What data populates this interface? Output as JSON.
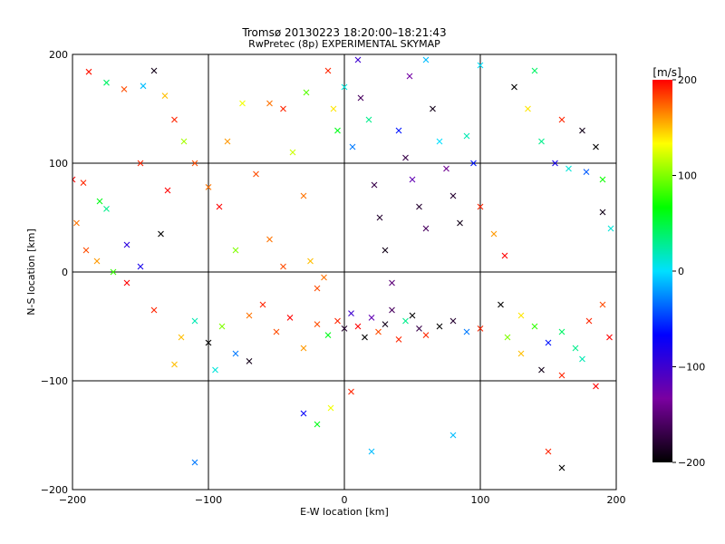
{
  "chart_data": {
    "type": "scatter",
    "title": "Tromsø 20130223 18:20:00–18:21:43",
    "subtitle": "RwPretec (8p) EXPERIMENTAL SKYMAP",
    "xlabel": "E-W location [km]",
    "ylabel": "N-S location [km]",
    "xlim": [
      -200,
      200
    ],
    "ylim": [
      -200,
      200
    ],
    "x_ticks": [
      -200,
      -100,
      0,
      100,
      200
    ],
    "y_ticks": [
      -200,
      -100,
      0,
      100,
      200
    ],
    "x_tick_labels": [
      "−200",
      "−100",
      "0",
      "100",
      "200"
    ],
    "y_tick_labels": [
      "−200",
      "−100",
      "0",
      "100",
      "200"
    ],
    "grid": true,
    "markers": [
      "cross-x",
      "dot"
    ],
    "colorbar": {
      "label": "[m/s]",
      "range": [
        -200,
        200
      ],
      "ticks": [
        -200,
        -100,
        0,
        100,
        200
      ],
      "tick_labels": [
        "−200",
        "−100",
        "0",
        "100",
        "200"
      ],
      "colormap": "rainbow-black-to-red",
      "colors": [
        "#000000",
        "#7a00a0",
        "#0000ff",
        "#00e0ff",
        "#00ff00",
        "#ffff00",
        "#ff0000"
      ]
    },
    "series": [
      {
        "marker": "cross-x",
        "points": [
          [
            -188,
            184,
            195
          ],
          [
            -175,
            174,
            40
          ],
          [
            -162,
            168,
            180
          ],
          [
            -148,
            171,
            -10
          ],
          [
            -140,
            185,
            -190
          ],
          [
            -132,
            162,
            150
          ],
          [
            -125,
            140,
            190
          ],
          [
            -118,
            120,
            110
          ],
          [
            -110,
            100,
            180
          ],
          [
            -100,
            78,
            170
          ],
          [
            -92,
            60,
            200
          ],
          [
            -86,
            120,
            160
          ],
          [
            -75,
            155,
            130
          ],
          [
            -65,
            90,
            180
          ],
          [
            -55,
            30,
            170
          ],
          [
            -45,
            150,
            190
          ],
          [
            -38,
            110,
            120
          ],
          [
            -30,
            70,
            170
          ],
          [
            -25,
            10,
            150
          ],
          [
            -20,
            -15,
            180
          ],
          [
            -12,
            185,
            190
          ],
          [
            -5,
            130,
            60
          ],
          [
            0,
            170,
            10
          ],
          [
            6,
            115,
            -30
          ],
          [
            12,
            160,
            -160
          ],
          [
            18,
            140,
            30
          ],
          [
            22,
            80,
            -170
          ],
          [
            26,
            50,
            -180
          ],
          [
            30,
            20,
            -190
          ],
          [
            35,
            -10,
            -150
          ],
          [
            40,
            130,
            -60
          ],
          [
            45,
            105,
            -170
          ],
          [
            50,
            85,
            -120
          ],
          [
            55,
            60,
            -180
          ],
          [
            60,
            40,
            -160
          ],
          [
            65,
            150,
            -190
          ],
          [
            70,
            120,
            0
          ],
          [
            75,
            95,
            -140
          ],
          [
            80,
            70,
            -180
          ],
          [
            85,
            45,
            -190
          ],
          [
            90,
            125,
            20
          ],
          [
            95,
            100,
            -60
          ],
          [
            100,
            60,
            190
          ],
          [
            110,
            35,
            160
          ],
          [
            118,
            15,
            200
          ],
          [
            125,
            170,
            -200
          ],
          [
            135,
            150,
            140
          ],
          [
            145,
            120,
            30
          ],
          [
            155,
            100,
            -80
          ],
          [
            165,
            95,
            10
          ],
          [
            175,
            130,
            -190
          ],
          [
            185,
            115,
            -200
          ],
          [
            190,
            85,
            70
          ],
          [
            -192,
            82,
            190
          ],
          [
            -190,
            20,
            180
          ],
          [
            -182,
            10,
            160
          ],
          [
            -170,
            0,
            80
          ],
          [
            -160,
            -10,
            200
          ],
          [
            -150,
            5,
            -80
          ],
          [
            -140,
            -35,
            190
          ],
          [
            -120,
            -60,
            150
          ],
          [
            -110,
            -45,
            20
          ],
          [
            -100,
            -65,
            -200
          ],
          [
            -90,
            -50,
            100
          ],
          [
            -80,
            -75,
            -30
          ],
          [
            -70,
            -40,
            170
          ],
          [
            -60,
            -30,
            190
          ],
          [
            -50,
            -55,
            180
          ],
          [
            -40,
            -42,
            200
          ],
          [
            -30,
            -70,
            160
          ],
          [
            -20,
            -48,
            180
          ],
          [
            -12,
            -58,
            60
          ],
          [
            -5,
            -45,
            190
          ],
          [
            0,
            -52,
            -180
          ],
          [
            5,
            -38,
            -100
          ],
          [
            10,
            -50,
            200
          ],
          [
            15,
            -60,
            -200
          ],
          [
            20,
            -42,
            -120
          ],
          [
            25,
            -55,
            180
          ],
          [
            30,
            -48,
            -190
          ],
          [
            35,
            -35,
            -160
          ],
          [
            40,
            -62,
            190
          ],
          [
            45,
            -45,
            30
          ],
          [
            50,
            -40,
            -200
          ],
          [
            55,
            -52,
            -170
          ],
          [
            60,
            -58,
            190
          ],
          [
            70,
            -50,
            -200
          ],
          [
            80,
            -45,
            -180
          ],
          [
            90,
            -55,
            -30
          ],
          [
            100,
            -52,
            190
          ],
          [
            115,
            -30,
            -200
          ],
          [
            130,
            -40,
            140
          ],
          [
            140,
            -50,
            80
          ],
          [
            150,
            -65,
            -60
          ],
          [
            160,
            -55,
            40
          ],
          [
            170,
            -70,
            30
          ],
          [
            180,
            -45,
            190
          ],
          [
            190,
            -30,
            180
          ],
          [
            195,
            -60,
            200
          ],
          [
            175,
            -80,
            20
          ],
          [
            160,
            -95,
            190
          ],
          [
            145,
            -90,
            -190
          ],
          [
            130,
            -75,
            150
          ],
          [
            120,
            -60,
            100
          ],
          [
            185,
            -105,
            200
          ],
          [
            150,
            -165,
            190
          ],
          [
            160,
            -180,
            -200
          ],
          [
            -30,
            -130,
            -70
          ],
          [
            -20,
            -140,
            60
          ],
          [
            -10,
            -125,
            130
          ],
          [
            5,
            -110,
            190
          ],
          [
            20,
            -165,
            -10
          ],
          [
            80,
            -150,
            -10
          ],
          [
            -110,
            -175,
            -30
          ],
          [
            -125,
            -85,
            150
          ],
          [
            -95,
            -90,
            10
          ],
          [
            -70,
            -82,
            -190
          ],
          [
            -55,
            155,
            170
          ],
          [
            -28,
            165,
            90
          ],
          [
            -8,
            150,
            140
          ],
          [
            10,
            195,
            -100
          ],
          [
            48,
            180,
            -130
          ],
          [
            60,
            195,
            -10
          ],
          [
            100,
            190,
            0
          ],
          [
            140,
            185,
            40
          ],
          [
            160,
            140,
            190
          ],
          [
            178,
            92,
            -40
          ],
          [
            190,
            55,
            -190
          ],
          [
            196,
            40,
            10
          ],
          [
            -160,
            25,
            -90
          ],
          [
            -175,
            58,
            30
          ],
          [
            -135,
            35,
            -200
          ],
          [
            -80,
            20,
            100
          ],
          [
            -45,
            5,
            180
          ],
          [
            -15,
            -5,
            170
          ],
          [
            -200,
            85,
            200
          ],
          [
            -197,
            45,
            170
          ],
          [
            -180,
            65,
            60
          ],
          [
            -150,
            100,
            190
          ],
          [
            -130,
            75,
            200
          ]
        ]
      },
      {
        "marker": "dot",
        "note": "",
        "points": []
      }
    ]
  }
}
